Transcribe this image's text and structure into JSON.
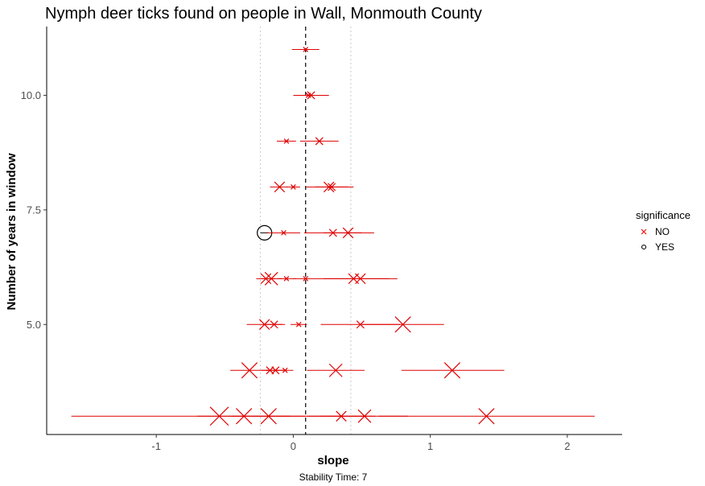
{
  "chart_data": {
    "type": "scatter",
    "title": "Nymph deer ticks found on people in Wall, Monmouth County",
    "xlabel": "slope",
    "ylabel": "Number of years in window",
    "caption": "Stability Time: 7",
    "xlim": [
      -1.8,
      2.4
    ],
    "ylim": [
      2.6,
      11.5
    ],
    "x_ticks": [
      -1,
      0,
      1,
      2
    ],
    "x_tick_labels": [
      "-1",
      "0",
      "1",
      "2"
    ],
    "y_ticks": [
      5.0,
      7.5,
      10.0
    ],
    "y_tick_labels": [
      "5.0",
      "7.5",
      "10.0"
    ],
    "grid": false,
    "reference_lines": {
      "dashed_x": 0.09,
      "dotted_x": [
        -0.24,
        0.42
      ]
    },
    "legend": {
      "title": "significance",
      "position": "right",
      "entries": [
        {
          "label": "NO",
          "marker": "x",
          "color": "#ff0000"
        },
        {
          "label": "YES",
          "marker": "circle",
          "color": "#000000"
        }
      ]
    },
    "points": [
      {
        "y": 11,
        "x": 0.09,
        "xmin": -0.01,
        "xmax": 0.19,
        "significance": "NO",
        "size": 1
      },
      {
        "y": 10,
        "x": 0.13,
        "xmin": 0.0,
        "xmax": 0.26,
        "significance": "NO",
        "size": 2
      },
      {
        "y": 10,
        "x": 0.11,
        "xmin": 0.03,
        "xmax": 0.18,
        "significance": "NO",
        "size": 1
      },
      {
        "y": 9,
        "x": -0.05,
        "xmin": -0.12,
        "xmax": 0.02,
        "significance": "NO",
        "size": 1
      },
      {
        "y": 9,
        "x": 0.19,
        "xmin": 0.05,
        "xmax": 0.33,
        "significance": "NO",
        "size": 2
      },
      {
        "y": 8,
        "x": -0.1,
        "xmin": -0.17,
        "xmax": -0.04,
        "significance": "NO",
        "size": 3
      },
      {
        "y": 8,
        "x": 0.0,
        "xmin": -0.05,
        "xmax": 0.05,
        "significance": "NO",
        "size": 1
      },
      {
        "y": 8,
        "x": 0.26,
        "xmin": 0.09,
        "xmax": 0.44,
        "significance": "NO",
        "size": 3
      },
      {
        "y": 8,
        "x": 0.28,
        "xmin": 0.16,
        "xmax": 0.4,
        "significance": "NO",
        "size": 2
      },
      {
        "y": 7,
        "x": -0.21,
        "xmin": -0.24,
        "xmax": -0.18,
        "significance": "YES",
        "size": 4
      },
      {
        "y": 7,
        "x": -0.07,
        "xmin": -0.19,
        "xmax": 0.05,
        "significance": "NO",
        "size": 1
      },
      {
        "y": 7,
        "x": 0.29,
        "xmin": 0.08,
        "xmax": 0.5,
        "significance": "NO",
        "size": 2
      },
      {
        "y": 7,
        "x": 0.4,
        "xmin": 0.22,
        "xmax": 0.59,
        "significance": "NO",
        "size": 3
      },
      {
        "y": 6,
        "x": -0.2,
        "xmin": -0.27,
        "xmax": -0.13,
        "significance": "NO",
        "size": 3
      },
      {
        "y": 6,
        "x": -0.16,
        "xmin": -0.24,
        "xmax": -0.08,
        "significance": "NO",
        "size": 4
      },
      {
        "y": 6,
        "x": -0.05,
        "xmin": -0.12,
        "xmax": 0.02,
        "significance": "NO",
        "size": 1
      },
      {
        "y": 6,
        "x": 0.09,
        "xmin": 0.0,
        "xmax": 0.18,
        "significance": "NO",
        "size": 1
      },
      {
        "y": 6,
        "x": 0.44,
        "xmin": 0.18,
        "xmax": 0.7,
        "significance": "NO",
        "size": 3
      },
      {
        "y": 6,
        "x": 0.49,
        "xmin": 0.22,
        "xmax": 0.76,
        "significance": "NO",
        "size": 3
      },
      {
        "y": 5,
        "x": -0.21,
        "xmin": -0.34,
        "xmax": -0.08,
        "significance": "NO",
        "size": 3
      },
      {
        "y": 5,
        "x": -0.14,
        "xmin": -0.22,
        "xmax": -0.06,
        "significance": "NO",
        "size": 2
      },
      {
        "y": 5,
        "x": 0.04,
        "xmin": -0.02,
        "xmax": 0.1,
        "significance": "NO",
        "size": 1
      },
      {
        "y": 5,
        "x": 0.49,
        "xmin": 0.2,
        "xmax": 0.78,
        "significance": "NO",
        "size": 2
      },
      {
        "y": 5,
        "x": 0.8,
        "xmin": 0.5,
        "xmax": 1.1,
        "significance": "NO",
        "size": 5
      },
      {
        "y": 4,
        "x": -0.32,
        "xmin": -0.46,
        "xmax": -0.18,
        "significance": "NO",
        "size": 5
      },
      {
        "y": 4,
        "x": -0.17,
        "xmin": -0.23,
        "xmax": -0.11,
        "significance": "NO",
        "size": 2
      },
      {
        "y": 4,
        "x": -0.13,
        "xmin": -0.2,
        "xmax": -0.06,
        "significance": "NO",
        "size": 2
      },
      {
        "y": 4,
        "x": -0.06,
        "xmin": -0.12,
        "xmax": 0.0,
        "significance": "NO",
        "size": 1
      },
      {
        "y": 4,
        "x": 0.31,
        "xmin": 0.1,
        "xmax": 0.52,
        "significance": "NO",
        "size": 4
      },
      {
        "y": 4,
        "x": 1.16,
        "xmin": 0.79,
        "xmax": 1.54,
        "significance": "NO",
        "size": 5
      },
      {
        "y": 3,
        "x": -0.54,
        "xmin": -1.62,
        "xmax": 0.54,
        "significance": "NO",
        "size": 6
      },
      {
        "y": 3,
        "x": -0.36,
        "xmin": -0.7,
        "xmax": -0.02,
        "significance": "NO",
        "size": 5
      },
      {
        "y": 3,
        "x": -0.18,
        "xmin": -0.45,
        "xmax": 0.09,
        "significance": "NO",
        "size": 5
      },
      {
        "y": 3,
        "x": 0.35,
        "xmin": 0.1,
        "xmax": 0.6,
        "significance": "NO",
        "size": 3
      },
      {
        "y": 3,
        "x": 0.52,
        "xmin": 0.2,
        "xmax": 0.84,
        "significance": "NO",
        "size": 4
      },
      {
        "y": 3,
        "x": 1.41,
        "xmin": 0.62,
        "xmax": 2.2,
        "significance": "NO",
        "size": 5
      }
    ]
  }
}
